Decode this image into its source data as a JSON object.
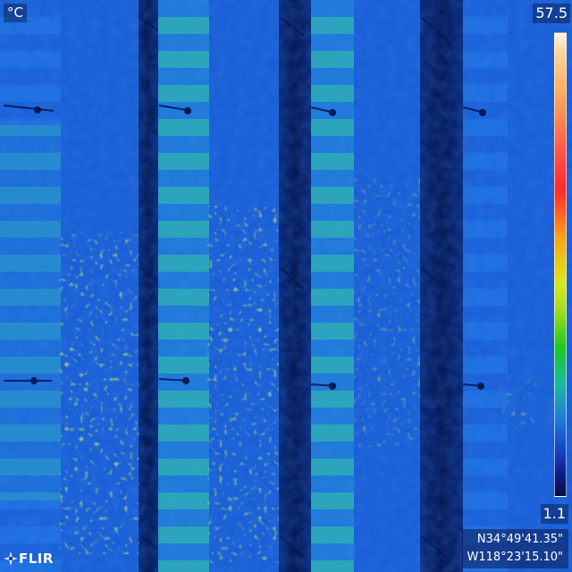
{
  "overlay": {
    "unit": "°C",
    "scale_max": "57.5",
    "scale_min": "1.1",
    "latitude": "N34°49'41.35\"",
    "longitude": "W118°23'15.10\"",
    "brand": "FLIR"
  },
  "colors": {
    "panel_base": "#1a5fd6",
    "panel_hot": "#c8e21a",
    "panel_warm": "#2fbf6a",
    "gap_dark": "#0a2a7a",
    "scale_top": "#fff4e8",
    "scale_bottom": "#080c40"
  },
  "icons": {
    "brand_mark": "flir-logo-icon",
    "scale": "temperature-scale-bar-icon"
  }
}
